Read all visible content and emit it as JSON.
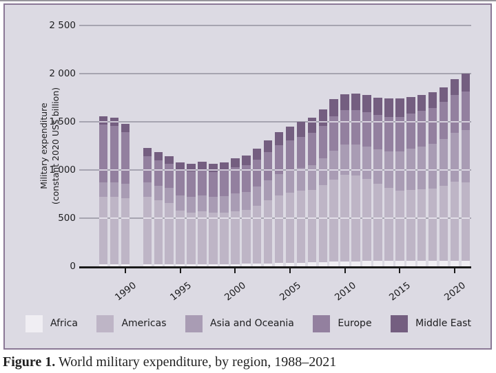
{
  "page": {
    "caption_label": "Figure 1.",
    "caption_text": " World military expenditure, by region, 1988–2021"
  },
  "chart_data": {
    "type": "bar",
    "stacked": true,
    "title": "",
    "xlabel": "",
    "ylabel": "Military expenditure (constant 2020 US$ billion)",
    "ylabel_lines": [
      "Military expenditure",
      "(constant 2020 US$ billion)"
    ],
    "ylim": [
      0,
      2500
    ],
    "y_ticks": [
      0,
      500,
      1000,
      1500,
      2000,
      2500
    ],
    "y_tick_labels": [
      "0",
      "500",
      "1 000",
      "1 500",
      "2 000",
      "2 500"
    ],
    "x_tick_years": [
      1990,
      1995,
      2000,
      2005,
      2010,
      2015,
      2020
    ],
    "years": [
      1988,
      1989,
      1990,
      1992,
      1993,
      1994,
      1995,
      1996,
      1997,
      1998,
      1999,
      2000,
      2001,
      2002,
      2003,
      2004,
      2005,
      2006,
      2007,
      2008,
      2009,
      2010,
      2011,
      2012,
      2013,
      2014,
      2015,
      2016,
      2017,
      2018,
      2019,
      2020,
      2021
    ],
    "missing_years": [
      1991
    ],
    "grid": true,
    "legend_position": "bottom",
    "series": [
      {
        "name": "Africa",
        "color": "#f0eef3",
        "values": [
          20,
          20,
          20,
          20,
          20,
          20,
          20,
          20,
          20,
          20,
          22,
          24,
          26,
          28,
          30,
          33,
          36,
          38,
          40,
          44,
          48,
          52,
          53,
          54,
          55,
          56,
          56,
          55,
          55,
          54,
          55,
          58,
          60
        ]
      },
      {
        "name": "Americas",
        "color": "#beb5c6",
        "values": [
          705,
          700,
          685,
          700,
          665,
          635,
          560,
          540,
          550,
          535,
          535,
          550,
          558,
          600,
          655,
          705,
          730,
          745,
          755,
          800,
          855,
          900,
          890,
          850,
          800,
          755,
          730,
          738,
          745,
          755,
          780,
          820,
          815
        ]
      },
      {
        "name": "Asia and Oceania",
        "color": "#a99cb4",
        "values": [
          145,
          148,
          150,
          152,
          154,
          156,
          158,
          162,
          166,
          170,
          175,
          182,
          190,
          198,
          207,
          216,
          228,
          242,
          258,
          276,
          300,
          312,
          325,
          342,
          362,
          385,
          408,
          428,
          445,
          462,
          485,
          510,
          540
        ]
      },
      {
        "name": "Europe",
        "color": "#93809f",
        "values": [
          605,
          588,
          540,
          273,
          264,
          253,
          260,
          261,
          264,
          255,
          258,
          272,
          273,
          280,
          292,
          303,
          310,
          320,
          330,
          340,
          357,
          355,
          352,
          355,
          352,
          355,
          358,
          362,
          368,
          375,
          385,
          390,
          400
        ]
      },
      {
        "name": "Middle East",
        "color": "#745e80",
        "values": [
          85,
          84,
          85,
          85,
          82,
          81,
          82,
          82,
          85,
          85,
          90,
          97,
          103,
          114,
          126,
          138,
          146,
          155,
          162,
          170,
          175,
          170,
          172,
          177,
          183,
          190,
          193,
          177,
          165,
          158,
          155,
          162,
          185
        ]
      }
    ]
  }
}
